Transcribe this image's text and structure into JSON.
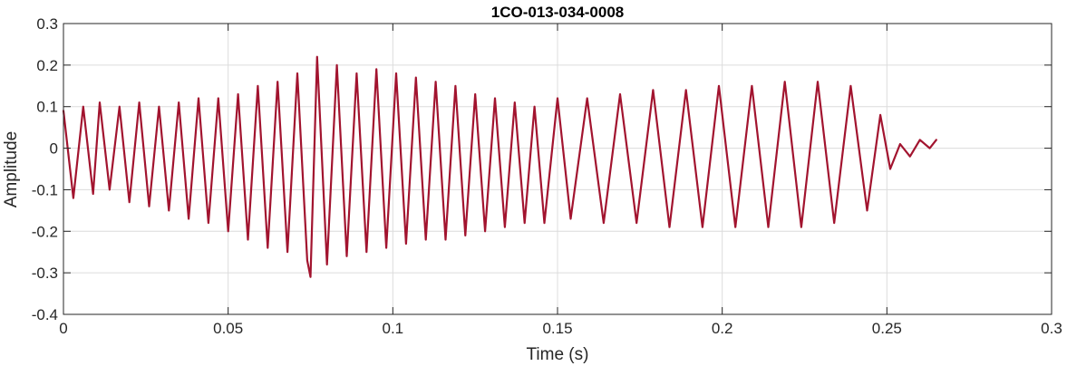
{
  "chart_data": {
    "type": "line",
    "title": "1CO-013-034-0008",
    "xlabel": "Time (s)",
    "ylabel": "Amplitude",
    "xlim": [
      0,
      0.3
    ],
    "ylim": [
      -0.4,
      0.3
    ],
    "xticks": [
      0,
      0.05,
      0.1,
      0.15,
      0.2,
      0.25,
      0.3
    ],
    "xtick_labels": [
      "0",
      "0.05",
      "0.1",
      "0.15",
      "0.2",
      "0.25",
      "0.3"
    ],
    "yticks": [
      -0.4,
      -0.3,
      -0.2,
      -0.1,
      0,
      0.1,
      0.2,
      0.3
    ],
    "ytick_labels": [
      "-0.4",
      "-0.3",
      "-0.2",
      "-0.1",
      "0",
      "0.1",
      "0.2",
      "0.3"
    ],
    "grid": true,
    "line_color": "#A2142F",
    "series": [
      {
        "x": [
          0,
          0.003,
          0.006,
          0.009,
          0.011,
          0.014,
          0.017,
          0.02,
          0.023,
          0.026,
          0.029,
          0.032,
          0.035,
          0.038,
          0.041,
          0.044,
          0.047,
          0.05,
          0.053,
          0.056,
          0.059,
          0.062,
          0.065,
          0.068,
          0.071,
          0.074,
          0.075,
          0.077,
          0.08,
          0.083,
          0.086,
          0.089,
          0.092,
          0.095,
          0.098,
          0.101,
          0.104,
          0.107,
          0.11,
          0.113,
          0.116,
          0.119,
          0.122,
          0.125,
          0.128,
          0.131,
          0.134,
          0.137,
          0.14,
          0.143,
          0.146,
          0.15,
          0.154,
          0.159,
          0.164,
          0.169,
          0.174,
          0.179,
          0.184,
          0.189,
          0.194,
          0.199,
          0.204,
          0.209,
          0.214,
          0.219,
          0.224,
          0.229,
          0.234,
          0.239,
          0.244,
          0.248,
          0.251,
          0.254,
          0.257,
          0.26,
          0.263,
          0.265
        ],
        "y": [
          0.09,
          -0.12,
          0.1,
          -0.11,
          0.11,
          -0.1,
          0.1,
          -0.13,
          0.11,
          -0.14,
          0.1,
          -0.15,
          0.11,
          -0.17,
          0.12,
          -0.18,
          0.12,
          -0.2,
          0.13,
          -0.22,
          0.15,
          -0.24,
          0.16,
          -0.25,
          0.18,
          -0.27,
          -0.31,
          0.22,
          -0.28,
          0.2,
          -0.26,
          0.18,
          -0.25,
          0.19,
          -0.24,
          0.18,
          -0.23,
          0.17,
          -0.22,
          0.16,
          -0.22,
          0.15,
          -0.21,
          0.13,
          -0.2,
          0.12,
          -0.19,
          0.11,
          -0.18,
          0.1,
          -0.18,
          0.12,
          -0.17,
          0.12,
          -0.18,
          0.13,
          -0.18,
          0.14,
          -0.19,
          0.14,
          -0.19,
          0.15,
          -0.19,
          0.15,
          -0.19,
          0.16,
          -0.19,
          0.16,
          -0.18,
          0.15,
          -0.15,
          0.08,
          -0.05,
          0.01,
          -0.02,
          0.02,
          0.0,
          0.02
        ]
      }
    ]
  }
}
